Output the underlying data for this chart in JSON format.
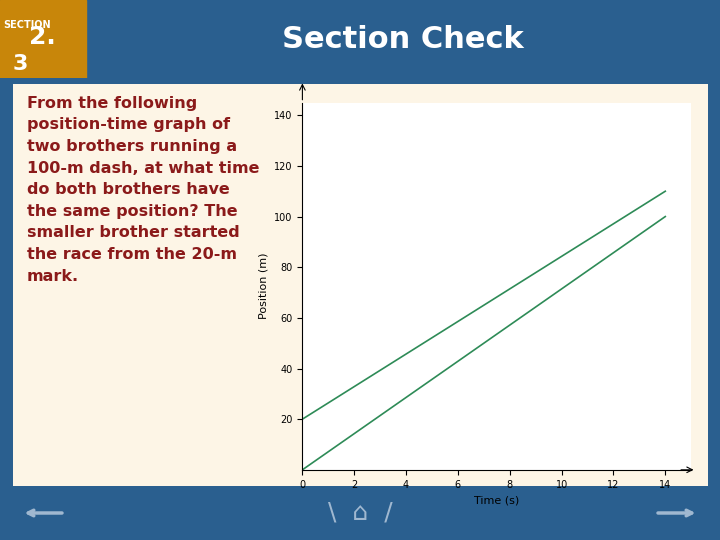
{
  "title": "Section Check",
  "section_label": "SECTION",
  "section_number": "2.",
  "section_sub": "3",
  "body_text": "From the following\nposition-time graph of\ntwo brothers running a\n100-m dash, at what time\ndo both brothers have\nthe same position? The\nsmaller brother started\nthe race from the 20-m\nmark.",
  "slide_bg": "#2a5f8f",
  "header_bg": "#8b1a1a",
  "section_num_bg": "#c8860a",
  "content_bg": "#fdf5e6",
  "header_text_color": "#ffffff",
  "body_text_color": "#8b1a1a",
  "footer_bg": "#1a4a6b",
  "graph": {
    "xlabel": "Time (s)",
    "ylabel": "Position (m)",
    "xlim": [
      0,
      15
    ],
    "ylim": [
      0,
      145
    ],
    "xticks": [
      0,
      2,
      4,
      6,
      8,
      10,
      12,
      14
    ],
    "yticks": [
      20,
      40,
      60,
      80,
      100,
      120,
      140
    ],
    "line1_x": [
      0,
      14
    ],
    "line1_y": [
      0,
      100
    ],
    "line2_x": [
      0,
      14
    ],
    "line2_y": [
      20,
      110
    ],
    "line_color": "#2e8b57",
    "bg_color": "#ffffff"
  }
}
